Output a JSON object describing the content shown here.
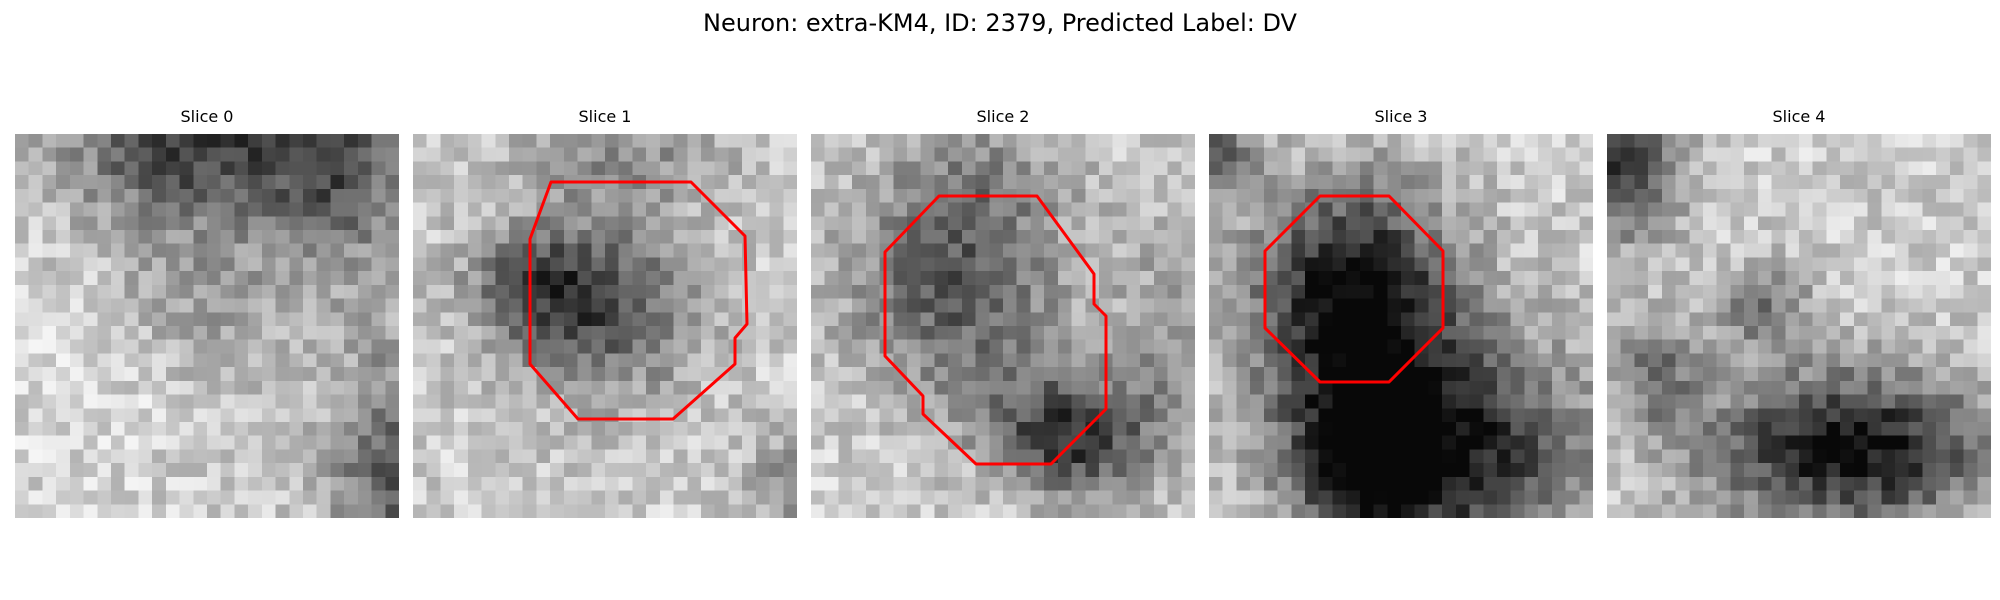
{
  "figure": {
    "title": "Neuron: extra-KM4, ID: 2379, Predicted Label: DV"
  },
  "slices": [
    {
      "title": "Slice 0",
      "has_contour": false
    },
    {
      "title": "Slice 1",
      "has_contour": true
    },
    {
      "title": "Slice 2",
      "has_contour": true
    },
    {
      "title": "Slice 3",
      "has_contour": true
    },
    {
      "title": "Slice 4",
      "has_contour": false
    }
  ],
  "colors": {
    "contour": "#ff0000",
    "background": "#ffffff"
  }
}
